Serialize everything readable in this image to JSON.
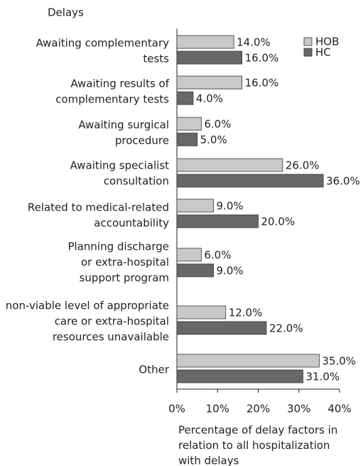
{
  "chart_data": {
    "type": "bar",
    "orientation": "horizontal",
    "title": "Delays",
    "x_label": [
      "Percentage of delay factors in",
      "relation to all hospitalization",
      "with delays"
    ],
    "categories": [
      [
        "Awaiting complementary",
        "tests"
      ],
      [
        "Awaiting results of",
        "complementary tests"
      ],
      [
        "Awaiting surgical",
        "procedure"
      ],
      [
        "Awaiting specialist",
        "consultation"
      ],
      [
        "Related to medical-related",
        "accountability"
      ],
      [
        "Planning discharge",
        "or extra-hospital",
        "support program"
      ],
      [
        "non-viable level of appropriate",
        "care or extra-hospital",
        "resources unavailable"
      ],
      [
        "Other"
      ]
    ],
    "series": [
      {
        "name": "HOB",
        "color": "#c9c9c9",
        "values": [
          14,
          16,
          6,
          26,
          9,
          6,
          12,
          35
        ],
        "value_labels": [
          "14.0%",
          "16.0%",
          "6.0%",
          "26.0%",
          "9.0%",
          "6.0%",
          "12.0%",
          "35.0%"
        ]
      },
      {
        "name": "HC",
        "color": "#686868",
        "values": [
          16,
          4,
          5,
          36,
          20,
          9,
          22,
          31
        ],
        "value_labels": [
          "16.0%",
          "4.0%",
          "5.0%",
          "36.0%",
          "20.0%",
          "9.0%",
          "22.0%",
          "31.0%"
        ]
      }
    ],
    "xlim": [
      0,
      40
    ],
    "xticks": [
      {
        "value": 0,
        "label": "0%"
      },
      {
        "value": 10,
        "label": "10%"
      },
      {
        "value": 20,
        "label": "20%"
      },
      {
        "value": 30,
        "label": "30%"
      },
      {
        "value": 40,
        "label": "40%"
      }
    ],
    "legend": "top-right"
  }
}
